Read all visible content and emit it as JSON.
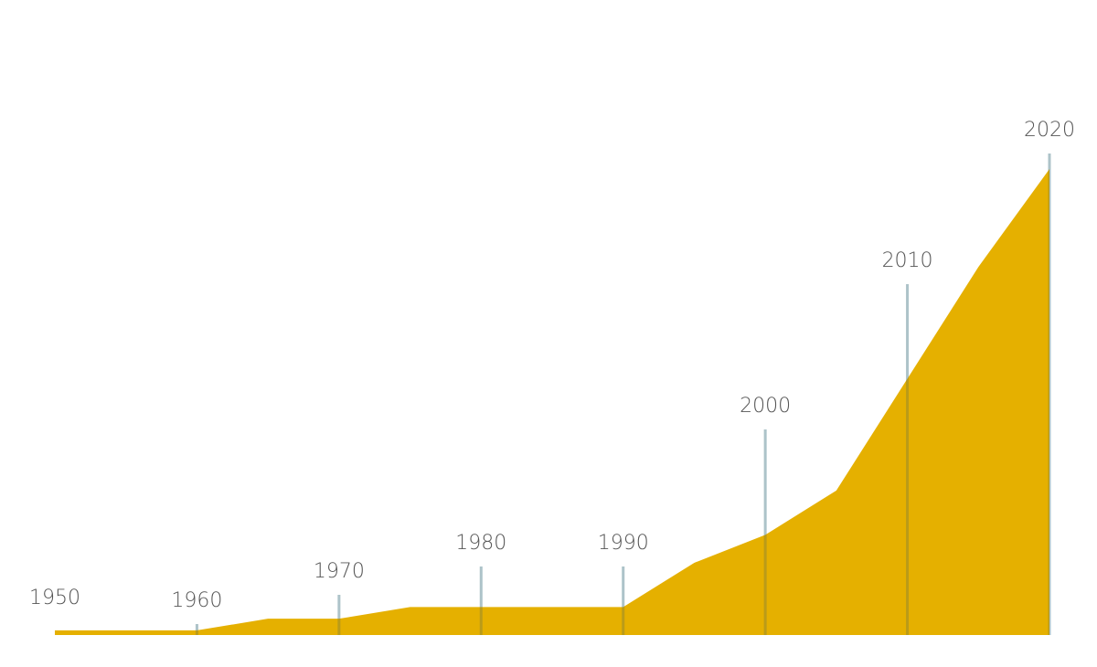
{
  "chart_data": {
    "type": "area",
    "x": [
      1950,
      1955,
      1960,
      1965,
      1970,
      1975,
      1980,
      1985,
      1990,
      1995,
      2000,
      2005,
      2010,
      2015,
      2020
    ],
    "values": [
      1,
      1,
      1,
      3.5,
      3.5,
      6,
      6,
      6,
      6,
      15.5,
      21.5,
      31,
      55,
      79,
      100
    ],
    "color": "#e5b000",
    "xlim": [
      1950,
      2020
    ],
    "xticks": [
      1950,
      1960,
      1970,
      1980,
      1990,
      2000,
      2010,
      2020
    ],
    "ylim": [
      0,
      100
    ]
  }
}
